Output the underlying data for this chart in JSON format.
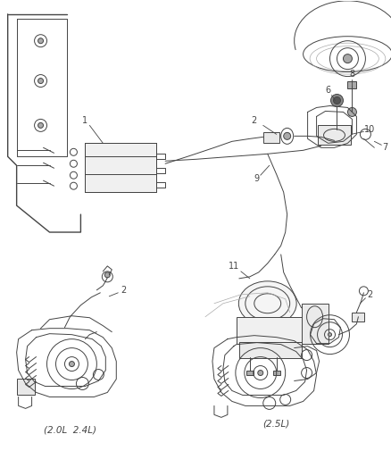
{
  "bg_color": "#ffffff",
  "line_color": "#444444",
  "gray_color": "#aaaaaa",
  "light_gray": "#cccccc",
  "fig_width": 4.39,
  "fig_height": 5.33,
  "dpi": 100,
  "captions": {
    "bottom_left": "(2.0L  2.4L)",
    "bottom_right": "(2.5L)"
  },
  "label_fs": 7.0,
  "caption_fs": 7.5
}
